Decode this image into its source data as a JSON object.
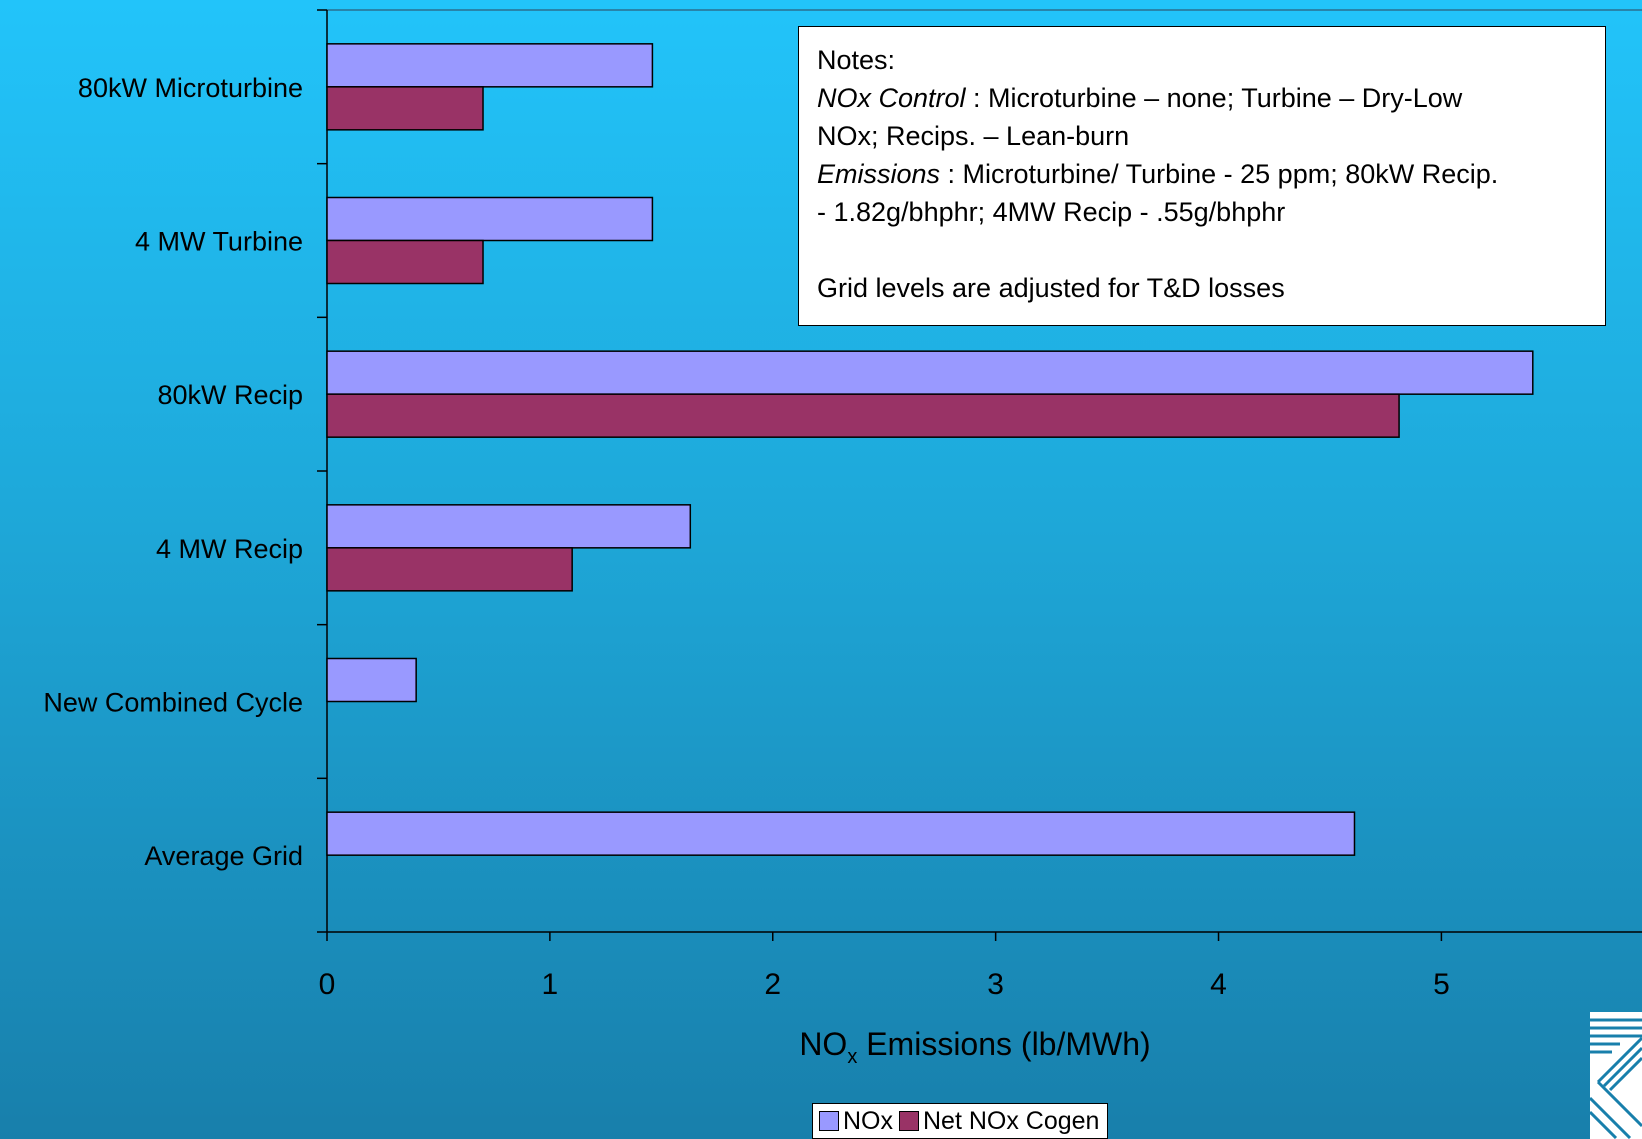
{
  "chart_data": {
    "type": "bar",
    "orientation": "horizontal",
    "categories": [
      "80kW Microturbine",
      "4 MW Turbine",
      "80kW Recip",
      "4 MW Recip",
      "New Combined Cycle",
      "Average Grid"
    ],
    "series": [
      {
        "name": "NOx",
        "color": "#9999ff",
        "values": [
          1.46,
          1.46,
          5.41,
          1.63,
          0.4,
          4.61
        ]
      },
      {
        "name": "Net NOx Cogen",
        "color": "#993366",
        "values": [
          0.7,
          0.7,
          4.81,
          1.1,
          null,
          null
        ]
      }
    ],
    "xlim": [
      0,
      5.9
    ],
    "xticks": [
      "0",
      "1",
      "2",
      "3",
      "4",
      "5"
    ],
    "xlabel_main": "NO",
    "xlabel_sub": "x",
    "xlabel_rest": " Emissions (lb/MWh)",
    "grid": false,
    "legend_position": "bottom"
  },
  "notes": {
    "line1": "Notes:",
    "line2_italic": "NOx  Control",
    "line2_rest": " : Microturbine – none; Turbine – Dry-Low",
    "line3": "NOx; Recips. – Lean-burn",
    "line4_italic": "Emissions",
    "line4_rest": " : Microturbine/ Turbine - 25 ppm; 80kW Recip.",
    "line5": "- 1.82g/bhphr; 4MW Recip - .55g/bhphr",
    "line6": "Grid levels are adjusted for T&D losses"
  },
  "legend": {
    "nox": "NOx",
    "net": "Net NOx Cogen"
  },
  "logo_icon": "striped-logo-icon"
}
